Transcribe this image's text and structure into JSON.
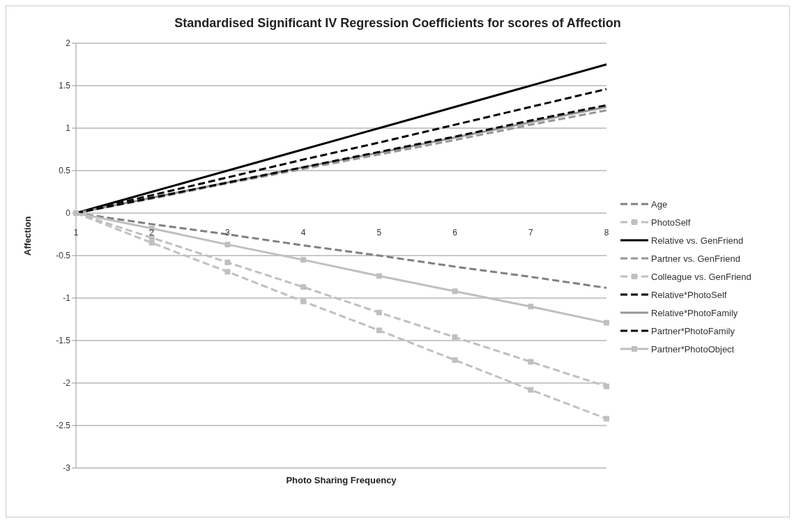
{
  "chart_data": {
    "type": "line",
    "title": "Standardised Significant IV Regression Coefficients for scores of Affection",
    "xlabel": "Photo Sharing Frequency",
    "ylabel": "Affection",
    "categories": [
      "1",
      "2",
      "3",
      "4",
      "5",
      "6",
      "7",
      "8"
    ],
    "series": [
      {
        "name": "Age",
        "color": "#808080",
        "line_style": "dashed",
        "marker": "none",
        "values": [
          0,
          -0.13,
          -0.25,
          -0.38,
          -0.5,
          -0.63,
          -0.75,
          -0.88
        ]
      },
      {
        "name": "PhotoSelf",
        "color": "#bfbfbf",
        "line_style": "dashed",
        "marker": "square",
        "values": [
          0,
          -0.29,
          -0.58,
          -0.87,
          -1.17,
          -1.46,
          -1.75,
          -2.04
        ]
      },
      {
        "name": "Relative vs. GenFriend",
        "color": "#000000",
        "line_style": "solid",
        "marker": "none",
        "values": [
          0,
          0.25,
          0.5,
          0.75,
          1,
          1.25,
          1.5,
          1.75
        ]
      },
      {
        "name": "Partner vs. GenFriend",
        "color": "#969696",
        "line_style": "dashed",
        "marker": "none",
        "values": [
          0,
          0.17,
          0.35,
          0.52,
          0.69,
          0.86,
          1.04,
          1.21
        ]
      },
      {
        "name": "Colleague vs. GenFriend",
        "color": "#c0c0c0",
        "line_style": "dashed",
        "marker": "square",
        "values": [
          0,
          -0.35,
          -0.69,
          -1.04,
          -1.38,
          -1.73,
          -2.08,
          -2.42
        ]
      },
      {
        "name": "Relative*PhotoSelf",
        "color": "#000000",
        "line_style": "dashed",
        "marker": "none",
        "values": [
          0,
          0.21,
          0.42,
          0.63,
          0.83,
          1.04,
          1.25,
          1.46
        ]
      },
      {
        "name": "Relative*PhotoFamily",
        "color": "#969696",
        "line_style": "solid",
        "marker": "none",
        "values": [
          0,
          0.18,
          0.36,
          0.54,
          0.71,
          0.89,
          1.07,
          1.25
        ]
      },
      {
        "name": "Partner*PhotoFamily",
        "color": "#000000",
        "line_style": "dashed",
        "marker": "none",
        "values": [
          0,
          0.18,
          0.36,
          0.54,
          0.72,
          0.9,
          1.09,
          1.27
        ]
      },
      {
        "name": "Partner*PhotoObject",
        "color": "#bfbfbf",
        "line_style": "solid",
        "marker": "square",
        "values": [
          0,
          -0.18,
          -0.37,
          -0.55,
          -0.74,
          -0.92,
          -1.1,
          -1.29
        ]
      }
    ],
    "ylim": [
      -3,
      2
    ],
    "yticks": [
      -3,
      -2.5,
      -2,
      -1.5,
      -1,
      -0.5,
      0,
      0.5,
      1,
      1.5,
      2
    ],
    "grid": "y",
    "legend": "right"
  }
}
